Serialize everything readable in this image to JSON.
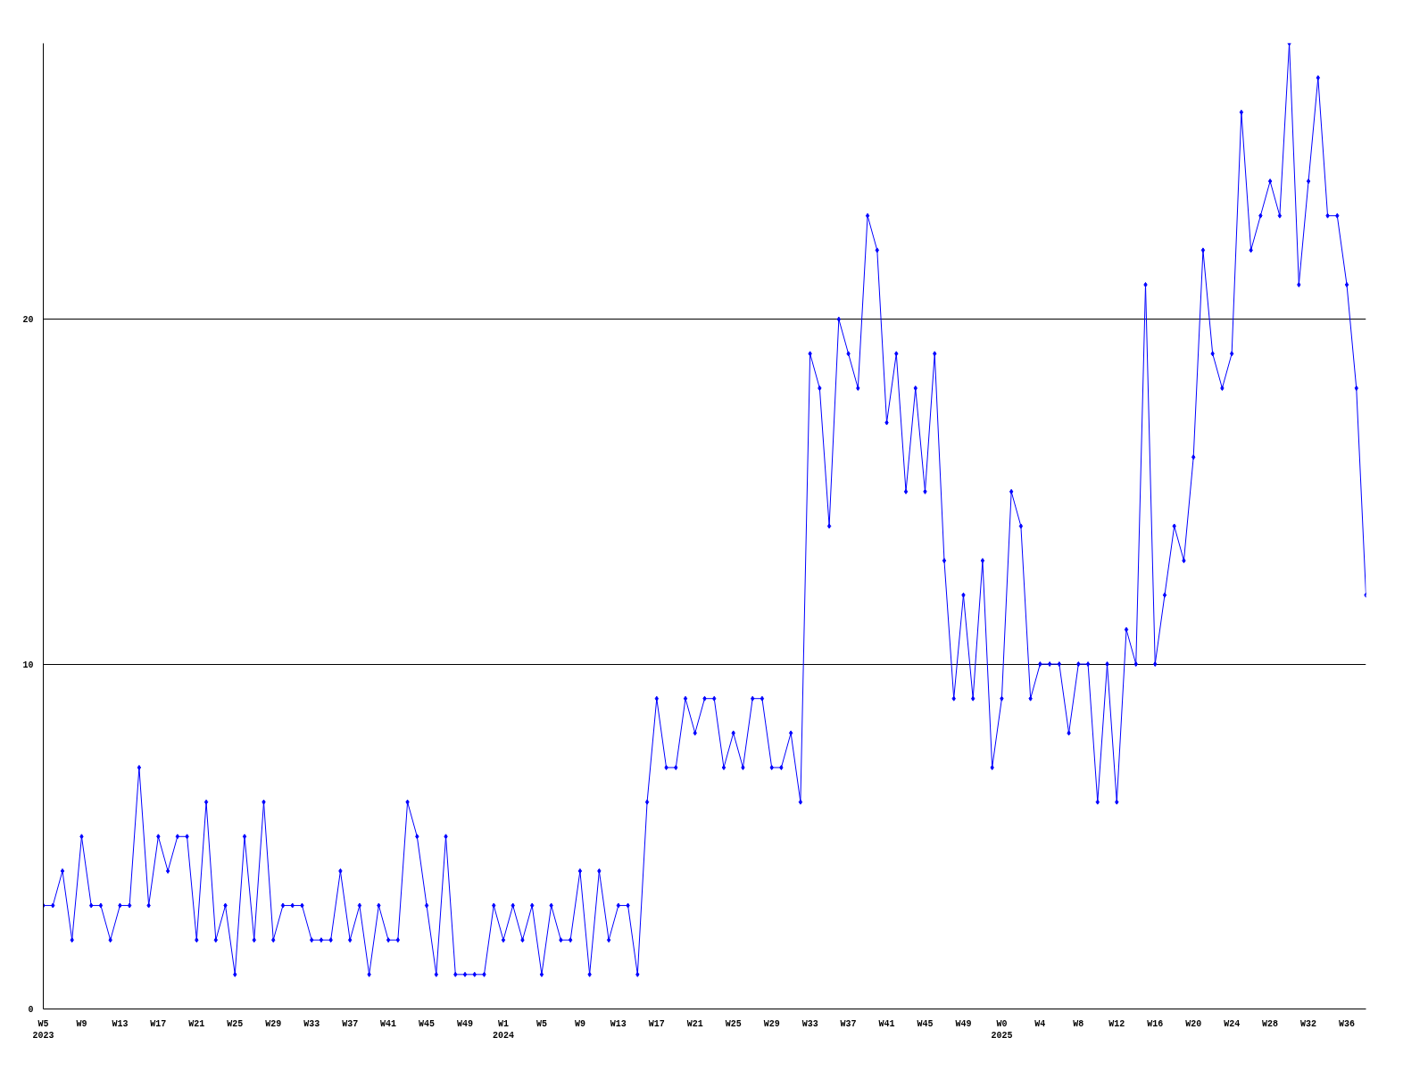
{
  "chart_data": {
    "type": "line",
    "categories": [
      "W5\n2023",
      null,
      null,
      null,
      "W9",
      null,
      null,
      null,
      "W13",
      null,
      null,
      null,
      "W17",
      null,
      null,
      null,
      "W21",
      null,
      null,
      null,
      "W25",
      null,
      null,
      null,
      "W29",
      null,
      null,
      null,
      "W33",
      null,
      null,
      null,
      "W37",
      null,
      null,
      null,
      "W41",
      null,
      null,
      null,
      "W45",
      null,
      null,
      null,
      "W49",
      null,
      null,
      null,
      "W1\n2024",
      null,
      null,
      null,
      "W5",
      null,
      null,
      null,
      "W9",
      null,
      null,
      null,
      "W13",
      null,
      null,
      null,
      "W17",
      null,
      null,
      null,
      "W21",
      null,
      null,
      null,
      "W25",
      null,
      null,
      null,
      "W29",
      null,
      null,
      null,
      "W33",
      null,
      null,
      null,
      "W37",
      null,
      null,
      null,
      "W41",
      null,
      null,
      null,
      "W45",
      null,
      null,
      null,
      "W49",
      null,
      null,
      null,
      "W0\n2025",
      null,
      null,
      null,
      "W4",
      null,
      null,
      null,
      "W8",
      null,
      null,
      null,
      "W12",
      null,
      null,
      null,
      "W16",
      null,
      null,
      null,
      "W20",
      null,
      null,
      null,
      "W24",
      null,
      null,
      null,
      "W28",
      null,
      null,
      null,
      "W32",
      null,
      null,
      null,
      "W36",
      null,
      null
    ],
    "series": [
      {
        "color": "#0000ff",
        "values": [
          3,
          3,
          4,
          2,
          5,
          3,
          3,
          2,
          3,
          3,
          7,
          3,
          5,
          4,
          5,
          5,
          2,
          6,
          2,
          3,
          1,
          5,
          2,
          6,
          2,
          3,
          3,
          3,
          2,
          2,
          2,
          4,
          2,
          3,
          1,
          3,
          2,
          2,
          6,
          5,
          3,
          1,
          5,
          1,
          1,
          1,
          1,
          3,
          2,
          3,
          2,
          3,
          1,
          3,
          2,
          2,
          4,
          1,
          4,
          2,
          3,
          3,
          1,
          6,
          9,
          7,
          7,
          9,
          8,
          9,
          9,
          7,
          8,
          7,
          9,
          9,
          7,
          7,
          8,
          6,
          19,
          18,
          14,
          20,
          19,
          18,
          23,
          22,
          17,
          19,
          15,
          18,
          15,
          19,
          13,
          9,
          12,
          9,
          13,
          7,
          9,
          15,
          14,
          9,
          10,
          10,
          10,
          8,
          10,
          10,
          6,
          10,
          6,
          11,
          10,
          21,
          10,
          12,
          14,
          13,
          16,
          22,
          19,
          18,
          19,
          26,
          22,
          23,
          24,
          23,
          28,
          21,
          24,
          27,
          23,
          23,
          21,
          18,
          12
        ]
      }
    ],
    "ylim": [
      0,
      28
    ],
    "yticks": [
      0,
      10,
      20
    ],
    "grid": "y",
    "marker": "diamond",
    "line_style": "solid"
  }
}
